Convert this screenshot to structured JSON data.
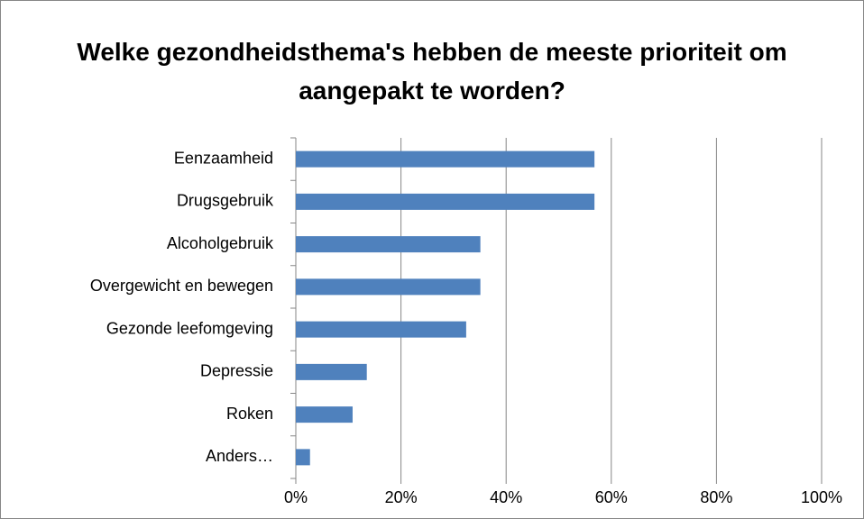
{
  "chart_data": {
    "type": "hbar",
    "title": "Welke gezondheidsthema's hebben de meeste prioriteit om aangepakt te worden?",
    "categories": [
      "Eenzaamheid",
      "Drugsgebruik",
      "Alcoholgebruik",
      "Overgewicht en bewegen",
      "Gezonde leefomgeving",
      "Depressie",
      "Roken",
      "Anders…"
    ],
    "values": [
      56.8,
      56.8,
      35.1,
      35.1,
      32.4,
      13.5,
      10.8,
      2.7
    ],
    "color": "#4f81bd",
    "xlim": [
      0,
      100
    ],
    "xticks": [
      {
        "value": 0,
        "label": "0%"
      },
      {
        "value": 20,
        "label": "20%"
      },
      {
        "value": 40,
        "label": "40%"
      },
      {
        "value": 60,
        "label": "60%"
      },
      {
        "value": 80,
        "label": "80%"
      },
      {
        "value": 100,
        "label": "100%"
      }
    ],
    "grid": true
  }
}
